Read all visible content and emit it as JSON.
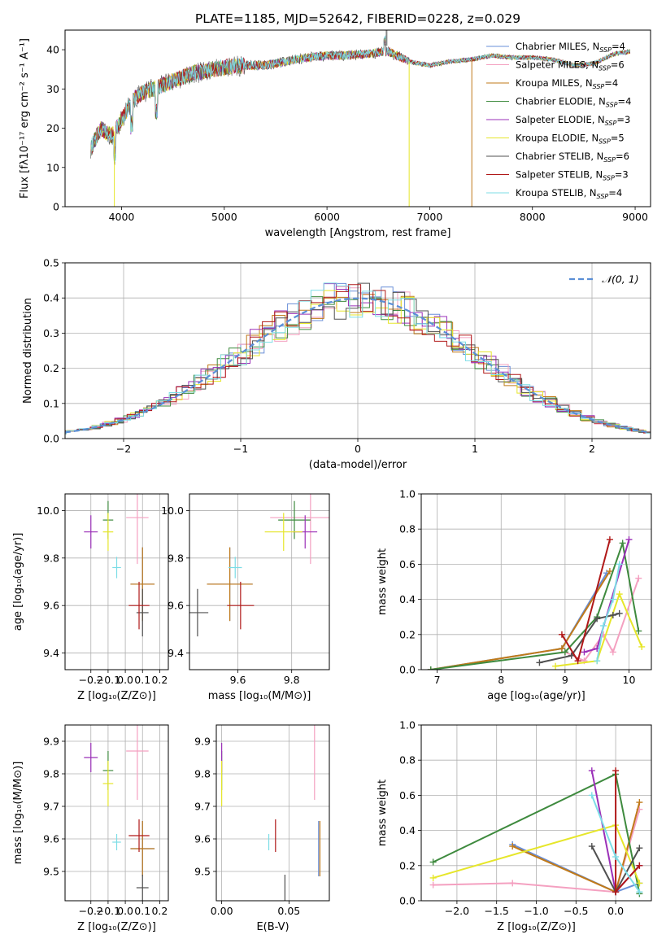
{
  "figure_title": "PLATE=1185, MJD=52642, FIBERID=0228, z=0.029",
  "colors": {
    "Chabrier MILES": "#6a8fd8",
    "Salpeter MILES": "#f4a0c0",
    "Kroupa MILES": "#c07a1a",
    "Chabrier ELODIE": "#3e8a3e",
    "Salpeter ELODIE": "#9b30b8",
    "Kroupa ELODIE": "#e6e62a",
    "Chabrier STELIB": "#505050",
    "Salpeter STELIB": "#b01818",
    "Kroupa STELIB": "#7cdde6",
    "gauss": "#5b8fd6",
    "grid": "#b0b0b0"
  },
  "spectrum_legend": [
    {
      "name": "Chabrier MILES",
      "text": "Chabrier MILES, N",
      "sub": "SSP",
      "tail": "=4"
    },
    {
      "name": "Salpeter MILES",
      "text": "Salpeter MILES, N",
      "sub": "SSP",
      "tail": "=6"
    },
    {
      "name": "Kroupa MILES",
      "text": "Kroupa MILES, N",
      "sub": "SSP",
      "tail": "=4"
    },
    {
      "name": "Chabrier ELODIE",
      "text": "Chabrier ELODIE, N",
      "sub": "SSP",
      "tail": "=4"
    },
    {
      "name": "Salpeter ELODIE",
      "text": "Salpeter ELODIE, N",
      "sub": "SSP",
      "tail": "=3"
    },
    {
      "name": "Kroupa ELODIE",
      "text": "Kroupa ELODIE, N",
      "sub": "SSP",
      "tail": "=5"
    },
    {
      "name": "Chabrier STELIB",
      "text": "Chabrier STELIB, N",
      "sub": "SSP",
      "tail": "=6"
    },
    {
      "name": "Salpeter STELIB",
      "text": "Salpeter STELIB, N",
      "sub": "SSP",
      "tail": "=3"
    },
    {
      "name": "Kroupa STELIB",
      "text": "Kroupa STELIB, N",
      "sub": "SSP",
      "tail": "=4"
    }
  ],
  "chart_data": [
    {
      "id": "spectrum",
      "type": "line",
      "xlabel": "wavelength [Angstrom, rest frame]",
      "ylabel": "Flux [fλ10⁻¹⁷ erg cm⁻² s⁻¹ A⁻¹]",
      "xlim": [
        3450,
        9150
      ],
      "ylim": [
        0,
        45
      ],
      "xticks": [
        4000,
        5000,
        6000,
        7000,
        8000,
        9000
      ],
      "yticks": [
        0,
        10,
        20,
        30,
        40
      ],
      "x": [
        3700,
        3800,
        3900,
        4000,
        4100,
        4200,
        4300,
        4400,
        4500,
        4600,
        4700,
        4800,
        4900,
        5000,
        5200,
        5400,
        5600,
        5800,
        6000,
        6200,
        6400,
        6600,
        6800,
        7000,
        7200,
        7400,
        7600,
        7800,
        8000,
        8200,
        8400,
        8600,
        8800,
        8950
      ],
      "y": [
        15,
        20,
        18,
        22,
        27,
        29,
        30,
        31,
        32,
        33,
        34,
        34.5,
        35,
        35.5,
        36,
        36,
        37,
        38,
        38.5,
        38.5,
        39,
        39.5,
        37,
        36,
        37,
        37.5,
        38.5,
        38,
        38,
        37.5,
        36,
        36.5,
        39,
        39.5
      ],
      "grid": false,
      "legend": "top-right"
    },
    {
      "id": "residuals",
      "type": "line",
      "xlabel": "(data-model)/error",
      "ylabel": "Normed distribution",
      "xlim": [
        -2.5,
        2.5
      ],
      "ylim": [
        0,
        0.5
      ],
      "xticks": [
        -2,
        -1,
        0,
        1,
        2
      ],
      "yticks": [
        0.0,
        0.1,
        0.2,
        0.3,
        0.4,
        0.5
      ],
      "series": [
        {
          "name": "𝒩(0, 1)",
          "function": "normal",
          "mu": 0,
          "sigma": 1
        }
      ],
      "grid": true,
      "legend": "top-right"
    },
    {
      "id": "age_vs_Z",
      "type": "scatter",
      "xlabel": "Z [log₁₀(Z/Z⊙)]",
      "ylabel": "age  [log₁₀(age/yr)]",
      "xlim": [
        -0.35,
        0.25
      ],
      "ylim": [
        9.33,
        10.07
      ],
      "xticks": [
        -0.2,
        -0.1,
        0.0,
        0.1,
        0.2
      ],
      "yticks": [
        9.4,
        9.6,
        9.8,
        10.0
      ],
      "grid": true
    },
    {
      "id": "age_vs_mass",
      "type": "scatter",
      "xlabel": "mass [log₁₀(M/M⊙)]",
      "ylabel": "",
      "xlim": [
        9.42,
        9.94
      ],
      "ylim": [
        9.33,
        10.07
      ],
      "xticks": [
        9.6,
        9.8
      ],
      "yticks": [
        9.4,
        9.6,
        9.8,
        10.0
      ],
      "grid": true
    },
    {
      "id": "weight_vs_age",
      "type": "line",
      "xlabel": "age  [log₁₀(age/yr)]",
      "ylabel": "mass weight",
      "xlim": [
        6.75,
        10.35
      ],
      "ylim": [
        0,
        1
      ],
      "xticks": [
        7,
        8,
        9,
        10
      ],
      "yticks": [
        0.0,
        0.2,
        0.4,
        0.6,
        0.8,
        1.0
      ],
      "grid": true
    },
    {
      "id": "mass_vs_Z",
      "type": "scatter",
      "xlabel": "Z [log₁₀(Z/Z⊙)]",
      "ylabel": "mass [log₁₀(M/M⊙)]",
      "xlim": [
        -0.35,
        0.25
      ],
      "ylim": [
        9.41,
        9.95
      ],
      "xticks": [
        -0.2,
        -0.1,
        0.0,
        0.1,
        0.2
      ],
      "yticks": [
        9.5,
        9.6,
        9.7,
        9.8,
        9.9
      ],
      "grid": true
    },
    {
      "id": "mass_vs_ebv",
      "type": "scatter",
      "xlabel": "E(B-V)",
      "ylabel": "",
      "xlim": [
        -0.004,
        0.08
      ],
      "ylim": [
        9.41,
        9.95
      ],
      "xticks": [
        0.0,
        0.05
      ],
      "yticks": [
        9.5,
        9.6,
        9.7,
        9.8,
        9.9
      ],
      "grid": true
    },
    {
      "id": "weight_vs_Z",
      "type": "line",
      "xlabel": "Z [log₁₀(Z/Z⊙)]",
      "ylabel": "mass weight",
      "xlim": [
        -2.45,
        0.45
      ],
      "ylim": [
        0,
        1
      ],
      "xticks": [
        -2.0,
        -1.5,
        -1.0,
        -0.5,
        0.0
      ],
      "yticks": [
        0.0,
        0.2,
        0.4,
        0.6,
        0.8,
        1.0
      ],
      "grid": true
    }
  ],
  "models_age_mass_Z": [
    {
      "name": "Chabrier MILES",
      "Z": 0.1,
      "Zerr": 0.14,
      "age": 9.69,
      "ageErr": 0.31,
      "mass": 9.57,
      "massErr": 0.17,
      "ebv": 0.072,
      "ebvErr": 0.14
    },
    {
      "name": "Salpeter MILES",
      "Z": 0.07,
      "Zerr": 0.13,
      "age": 9.97,
      "ageErr": 0.39,
      "mass": 9.87,
      "massErr": 0.3,
      "ebv": 0.069,
      "ebvErr": 0.33
    },
    {
      "name": "Kroupa MILES",
      "Z": 0.1,
      "Zerr": 0.14,
      "age": 9.69,
      "ageErr": 0.31,
      "mass": 9.57,
      "massErr": 0.17,
      "ebv": 0.073,
      "ebvErr": 0.14
    },
    {
      "name": "Chabrier ELODIE",
      "Z": -0.1,
      "Zerr": 0.06,
      "age": 9.96,
      "ageErr": 0.16,
      "mass": 9.81,
      "massErr": 0.12,
      "ebv": 0.0,
      "ebvErr": 0.1
    },
    {
      "name": "Salpeter ELODIE",
      "Z": -0.2,
      "Zerr": 0.08,
      "age": 9.91,
      "ageErr": 0.14,
      "mass": 9.85,
      "massErr": 0.09,
      "ebv": 0.0,
      "ebvErr": 0.08
    },
    {
      "name": "Kroupa ELODIE",
      "Z": -0.1,
      "Zerr": 0.06,
      "age": 9.91,
      "ageErr": 0.16,
      "mass": 9.77,
      "massErr": 0.14,
      "ebv": 0.0,
      "ebvErr": 0.14
    },
    {
      "name": "Chabrier STELIB",
      "Z": 0.1,
      "Zerr": 0.07,
      "age": 9.57,
      "ageErr": 0.2,
      "mass": 9.45,
      "massErr": 0.08,
      "ebv": 0.047,
      "ebvErr": 0.08
    },
    {
      "name": "Salpeter STELIB",
      "Z": 0.08,
      "Zerr": 0.12,
      "age": 9.6,
      "ageErr": 0.2,
      "mass": 9.61,
      "massErr": 0.1,
      "ebv": 0.04,
      "ebvErr": 0.1
    },
    {
      "name": "Kroupa STELIB",
      "Z": -0.05,
      "Zerr": 0.05,
      "age": 9.76,
      "ageErr": 0.09,
      "mass": 9.59,
      "massErr": 0.05,
      "ebv": 0.035,
      "ebvErr": 0.05
    }
  ],
  "weights_by_age": [
    {
      "name": "Chabrier MILES",
      "age": [
        6.9,
        8.95,
        9.65
      ],
      "w": [
        0.0,
        0.12,
        0.55
      ]
    },
    {
      "name": "Salpeter MILES",
      "age": [
        9.0,
        9.3,
        9.6,
        9.75,
        10.15
      ],
      "w": [
        0.1,
        0.05,
        0.2,
        0.1,
        0.52
      ]
    },
    {
      "name": "Kroupa MILES",
      "age": [
        6.9,
        8.95,
        9.7
      ],
      "w": [
        0.0,
        0.12,
        0.56
      ]
    },
    {
      "name": "Chabrier ELODIE",
      "age": [
        6.9,
        9.0,
        9.5,
        9.9,
        10.15
      ],
      "w": [
        0.0,
        0.1,
        0.3,
        0.72,
        0.22
      ]
    },
    {
      "name": "Salpeter ELODIE",
      "age": [
        9.3,
        9.5,
        10.0
      ],
      "w": [
        0.1,
        0.12,
        0.74
      ]
    },
    {
      "name": "Kroupa ELODIE",
      "age": [
        8.85,
        9.5,
        9.85,
        10.2
      ],
      "w": [
        0.02,
        0.05,
        0.43,
        0.13
      ]
    },
    {
      "name": "Chabrier STELIB",
      "age": [
        8.6,
        9.1,
        9.5,
        9.75,
        9.85
      ],
      "w": [
        0.04,
        0.08,
        0.29,
        0.31,
        0.32
      ]
    },
    {
      "name": "Salpeter STELIB",
      "age": [
        8.95,
        9.2,
        9.7
      ],
      "w": [
        0.2,
        0.05,
        0.74
      ]
    },
    {
      "name": "Kroupa STELIB",
      "age": [
        9.5,
        9.6,
        9.75,
        9.85
      ],
      "w": [
        0.05,
        0.25,
        0.4,
        0.6
      ]
    }
  ],
  "weights_by_Z": [
    {
      "name": "Chabrier MILES",
      "Z": [
        -1.3,
        0.0,
        0.3
      ],
      "w": [
        0.32,
        0.05,
        0.1
      ]
    },
    {
      "name": "Salpeter MILES",
      "Z": [
        -2.3,
        -1.3,
        0.0,
        0.3
      ],
      "w": [
        0.09,
        0.1,
        0.05,
        0.52
      ]
    },
    {
      "name": "Kroupa MILES",
      "Z": [
        -1.3,
        0.0,
        0.3
      ],
      "w": [
        0.31,
        0.05,
        0.56
      ]
    },
    {
      "name": "Chabrier ELODIE",
      "Z": [
        -2.3,
        0.0,
        0.3
      ],
      "w": [
        0.22,
        0.72,
        0.04
      ]
    },
    {
      "name": "Salpeter ELODIE",
      "Z": [
        -0.3,
        0.0,
        0.3
      ],
      "w": [
        0.74,
        0.05,
        0.2
      ]
    },
    {
      "name": "Kroupa ELODIE",
      "Z": [
        -2.3,
        0.0,
        0.3
      ],
      "w": [
        0.13,
        0.43,
        0.1
      ]
    },
    {
      "name": "Chabrier STELIB",
      "Z": [
        -0.3,
        0.0,
        0.3
      ],
      "w": [
        0.31,
        0.05,
        0.3
      ]
    },
    {
      "name": "Salpeter STELIB",
      "Z": [
        0.0,
        0.0,
        0.3
      ],
      "w": [
        0.74,
        0.05,
        0.2
      ]
    },
    {
      "name": "Kroupa STELIB",
      "Z": [
        -0.3,
        0.0,
        0.3
      ],
      "w": [
        0.6,
        0.25,
        0.05
      ]
    }
  ]
}
